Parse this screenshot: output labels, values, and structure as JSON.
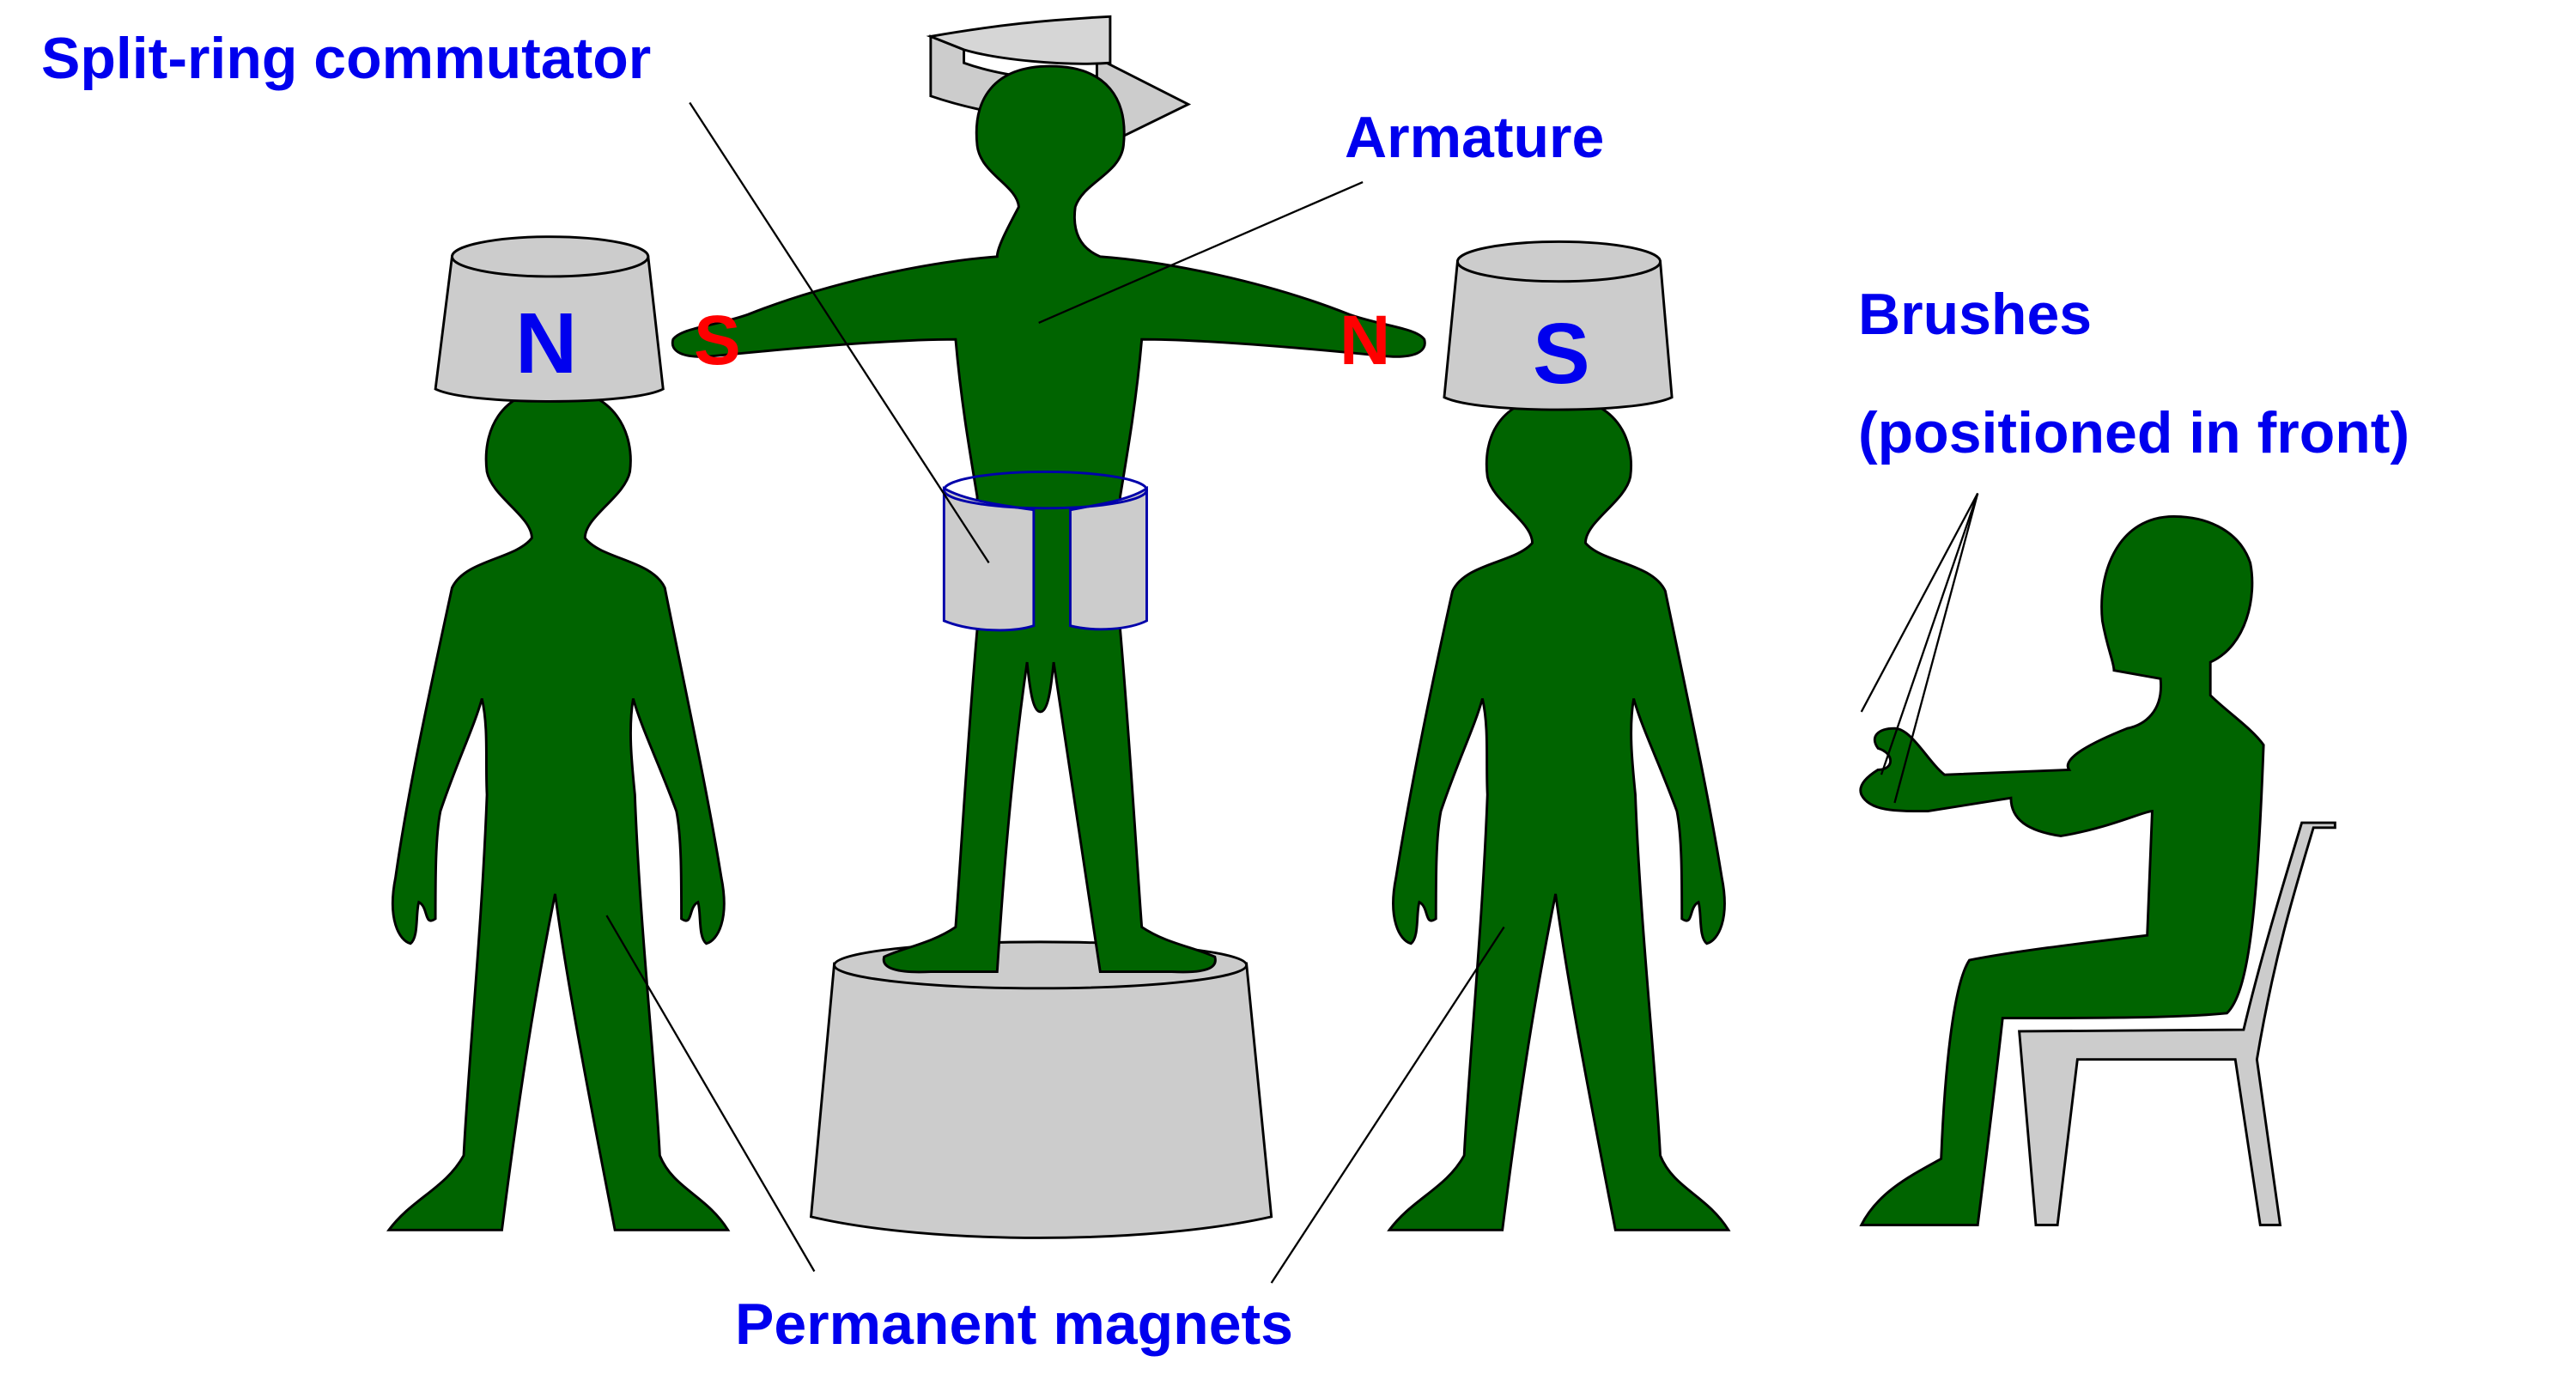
{
  "labels": {
    "commutator": "Split-ring commutator",
    "armature": "Armature",
    "brushes_line1": "Brushes",
    "brushes_line2": "(positioned in front)",
    "permanent_magnets": "Permanent magnets"
  },
  "poles": {
    "left_magnet": "N",
    "right_magnet": "S",
    "armature_left_hand": "S",
    "armature_right_hand": "N"
  },
  "colors": {
    "figure_fill": "#006400",
    "prop_fill": "#cccccc",
    "label_text": "#0000ee",
    "pole_on_armature": "#ff0000",
    "pole_on_magnets": "#0000ee"
  }
}
